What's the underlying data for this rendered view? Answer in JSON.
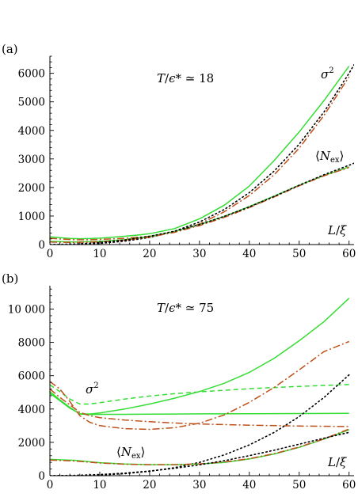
{
  "chart_data": [
    {
      "type": "line",
      "panel_label": "(a)",
      "annotation": {
        "T": "T",
        "slash": "/",
        "eps": "ϵ*",
        "rel": " ≃ 18"
      },
      "sigma_label": {
        "base": "σ",
        "sup": "2"
      },
      "n_label": {
        "open": "⟨",
        "N": "N",
        "sub": "ex",
        "close": "⟩"
      },
      "xaxis_label": {
        "L": "L",
        "slash": "/",
        "xi": "ξ"
      },
      "xlim": [
        0,
        61
      ],
      "ylim": [
        0,
        6600
      ],
      "xticks": [
        0,
        10,
        20,
        30,
        40,
        50,
        60
      ],
      "yticks": [
        0,
        1000,
        2000,
        3000,
        4000,
        5000,
        6000
      ],
      "ytick_labels": [
        "0",
        "1000",
        "2000",
        "3000",
        "4000",
        "5000",
        "6000"
      ],
      "series": [
        {
          "style": "solid",
          "color": "#33dd33",
          "x": [
            0,
            2,
            4,
            6,
            8,
            10,
            12,
            15,
            18,
            20,
            25,
            30,
            35,
            40,
            45,
            50,
            55,
            60
          ],
          "y": [
            270,
            240,
            215,
            205,
            210,
            225,
            250,
            290,
            340,
            380,
            560,
            900,
            1380,
            2050,
            2950,
            3950,
            5050,
            6250
          ]
        },
        {
          "style": "dashdot",
          "color": "#c0501a",
          "x": [
            0,
            3,
            5,
            8,
            10,
            15,
            20,
            25,
            30,
            35,
            40,
            45,
            50,
            55,
            60
          ],
          "y": [
            220,
            185,
            170,
            170,
            180,
            220,
            290,
            440,
            720,
            1150,
            1720,
            2450,
            3380,
            4530,
            5880
          ]
        },
        {
          "style": "dotted",
          "color": "#000000",
          "x": [
            0,
            5,
            10,
            15,
            20,
            25,
            30,
            35,
            40,
            45,
            50,
            55,
            60,
            61
          ],
          "y": [
            0,
            5,
            40,
            120,
            250,
            470,
            790,
            1230,
            1820,
            2580,
            3520,
            4650,
            6000,
            6300
          ]
        },
        {
          "style": "solid",
          "color": "#33dd33",
          "x": [
            0,
            5,
            10,
            15,
            20,
            25,
            30,
            35,
            40,
            45,
            50,
            55,
            60
          ],
          "y": [
            110,
            90,
            110,
            170,
            280,
            460,
            700,
            990,
            1330,
            1700,
            2080,
            2420,
            2720
          ]
        },
        {
          "style": "dashdot",
          "color": "#c0501a",
          "x": [
            0,
            5,
            10,
            15,
            20,
            25,
            30,
            35,
            40,
            45,
            50,
            55,
            60
          ],
          "y": [
            90,
            75,
            95,
            155,
            260,
            430,
            665,
            955,
            1295,
            1670,
            2060,
            2410,
            2700
          ]
        },
        {
          "style": "dotted",
          "color": "#000000",
          "x": [
            0,
            5,
            10,
            15,
            20,
            25,
            30,
            35,
            40,
            45,
            50,
            55,
            60,
            61
          ],
          "y": [
            0,
            20,
            70,
            160,
            290,
            470,
            700,
            990,
            1320,
            1690,
            2080,
            2450,
            2780,
            2850
          ]
        }
      ]
    },
    {
      "type": "line",
      "panel_label": "(b)",
      "annotation": {
        "T": "T",
        "slash": "/",
        "eps": "ϵ*",
        "rel": " ≃ 75"
      },
      "sigma_label": {
        "base": "σ",
        "sup": "2"
      },
      "n_label": {
        "open": "⟨",
        "N": "N",
        "sub": "ex",
        "close": "⟩"
      },
      "xaxis_label": {
        "L": "L",
        "slash": "/",
        "xi": "ξ"
      },
      "xlim": [
        0,
        61
      ],
      "ylim": [
        0,
        11400
      ],
      "xticks": [
        0,
        10,
        20,
        30,
        40,
        50,
        60
      ],
      "yticks": [
        0,
        2000,
        4000,
        6000,
        8000,
        10000
      ],
      "ytick_labels": [
        "0",
        "2000",
        "4000",
        "6000",
        "8000",
        "10 000"
      ],
      "series": [
        {
          "style": "solid",
          "color": "#33dd33",
          "x": [
            0,
            2,
            4,
            6,
            8,
            10,
            15,
            20,
            25,
            30,
            35,
            40,
            45,
            50,
            55,
            60
          ],
          "y": [
            4950,
            4500,
            4050,
            3720,
            3700,
            3760,
            4000,
            4300,
            4650,
            5050,
            5550,
            6200,
            7050,
            8100,
            9250,
            10650
          ]
        },
        {
          "style": "dashed",
          "color": "#33dd33",
          "x": [
            0,
            2,
            4,
            6,
            8,
            10,
            15,
            20,
            25,
            30,
            40,
            50,
            60
          ],
          "y": [
            5450,
            5050,
            4600,
            4300,
            4300,
            4380,
            4600,
            4780,
            4920,
            5030,
            5220,
            5360,
            5470
          ]
        },
        {
          "style": "solid",
          "color": "#33dd33",
          "x": [
            0,
            2,
            4,
            6,
            8,
            10,
            15,
            20,
            25,
            30,
            40,
            50,
            60
          ],
          "y": [
            5050,
            4550,
            4100,
            3700,
            3670,
            3680,
            3680,
            3690,
            3700,
            3710,
            3720,
            3730,
            3740
          ]
        },
        {
          "style": "dashdot",
          "color": "#c0501a",
          "x": [
            0,
            2,
            4,
            6,
            8,
            10,
            15,
            20,
            25,
            30,
            35,
            40,
            45,
            50,
            55,
            60
          ],
          "y": [
            5650,
            5200,
            4450,
            3600,
            3200,
            3000,
            2820,
            2780,
            2880,
            3150,
            3650,
            4400,
            5300,
            6350,
            7450,
            8050
          ]
        },
        {
          "style": "dashdot",
          "color": "#c0501a",
          "x": [
            0,
            2,
            4,
            6,
            8,
            10,
            15,
            20,
            25,
            30,
            40,
            50,
            60
          ],
          "y": [
            5200,
            4700,
            4250,
            3800,
            3600,
            3480,
            3340,
            3240,
            3160,
            3100,
            3030,
            2980,
            2950
          ]
        },
        {
          "style": "dotted",
          "color": "#000000",
          "x": [
            0,
            5,
            10,
            15,
            20,
            25,
            30,
            35,
            40,
            45,
            50,
            55,
            60
          ],
          "y": [
            0,
            5,
            40,
            120,
            260,
            480,
            800,
            1250,
            1850,
            2600,
            3550,
            4700,
            6050
          ]
        },
        {
          "style": "solid",
          "color": "#33dd33",
          "x": [
            0,
            5,
            10,
            15,
            20,
            25,
            30,
            35,
            40,
            45,
            50,
            55,
            60
          ],
          "y": [
            980,
            920,
            780,
            700,
            660,
            660,
            700,
            800,
            1000,
            1300,
            1700,
            2200,
            2750
          ]
        },
        {
          "style": "dashdot",
          "color": "#c0501a",
          "x": [
            0,
            5,
            10,
            15,
            20,
            25,
            30,
            35,
            40,
            45,
            50,
            55,
            60
          ],
          "y": [
            940,
            880,
            760,
            690,
            660,
            660,
            710,
            820,
            1020,
            1320,
            1720,
            2210,
            2800
          ]
        },
        {
          "style": "dotted",
          "color": "#000000",
          "x": [
            0,
            5,
            10,
            15,
            20,
            25,
            30,
            35,
            40,
            45,
            50,
            55,
            60
          ],
          "y": [
            0,
            20,
            70,
            150,
            280,
            440,
            650,
            900,
            1200,
            1530,
            1890,
            2250,
            2600
          ]
        }
      ]
    }
  ]
}
